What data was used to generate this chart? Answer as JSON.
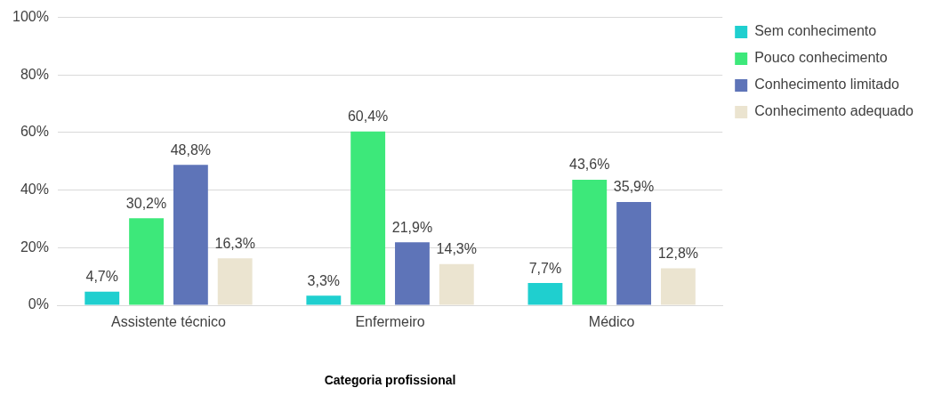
{
  "chart_data": {
    "type": "bar",
    "xlabel": "Categoria profissional",
    "categories": [
      "Assistente técnico",
      "Enfermeiro",
      "Médico"
    ],
    "series": [
      {
        "name": "Sem conhecimento",
        "color": "#1fcfcf",
        "values": [
          4.7,
          3.3,
          7.7
        ],
        "value_labels": [
          "4,7%",
          "3,3%",
          "7,7%"
        ]
      },
      {
        "name": "Pouco conhecimento",
        "color": "#3de87a",
        "values": [
          30.2,
          60.4,
          43.6
        ],
        "value_labels": [
          "30,2%",
          "60,4%",
          "43,6%"
        ]
      },
      {
        "name": "Conhecimento limitado",
        "color": "#5e74b8",
        "values": [
          48.8,
          21.9,
          35.9
        ],
        "value_labels": [
          "48,8%",
          "21,9%",
          "35,9%"
        ]
      },
      {
        "name": "Conhecimento adequado",
        "color": "#ebe4d0",
        "values": [
          16.3,
          14.3,
          12.8
        ],
        "value_labels": [
          "16,3%",
          "14,3%",
          "12,8%"
        ]
      }
    ],
    "ylim": [
      0,
      100
    ],
    "yticks": [
      {
        "value": 0,
        "label": "0%"
      },
      {
        "value": 20,
        "label": "20%"
      },
      {
        "value": 40,
        "label": "40%"
      },
      {
        "value": 60,
        "label": "60%"
      },
      {
        "value": 80,
        "label": "80%"
      },
      {
        "value": 100,
        "label": "100%"
      }
    ],
    "grid": "y",
    "legend": "top right"
  }
}
